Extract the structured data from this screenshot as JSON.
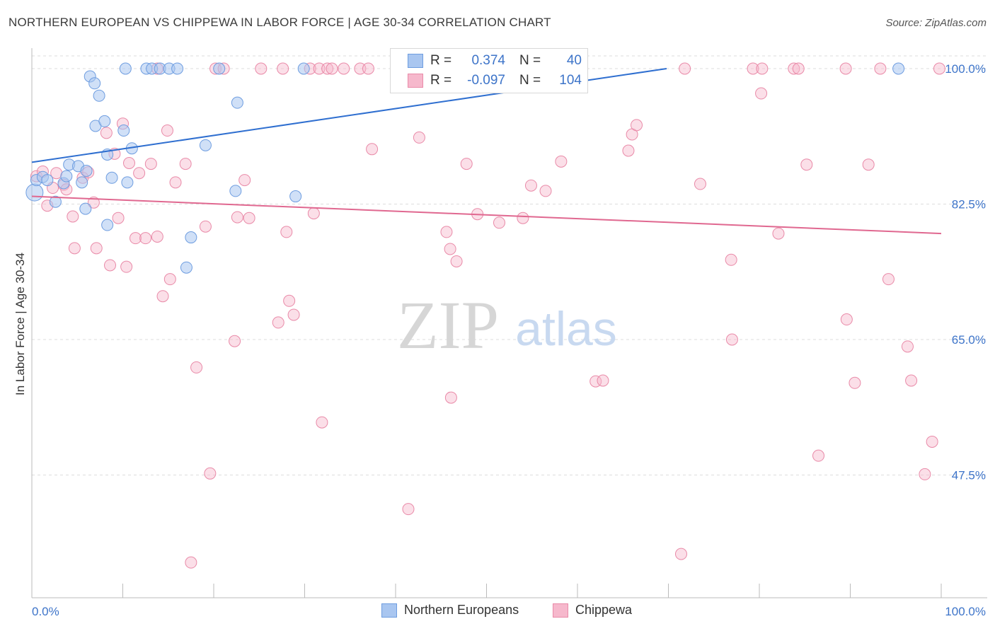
{
  "title": "NORTHERN EUROPEAN VS CHIPPEWA IN LABOR FORCE | AGE 30-34 CORRELATION CHART",
  "source": "Source: ZipAtlas.com",
  "watermark": {
    "zip": "ZIP",
    "atlas": "atlas"
  },
  "legend": {
    "row1": {
      "r_label": "R =",
      "r_value": "0.374",
      "n_label": "N =",
      "n_value": "40"
    },
    "row2": {
      "r_label": "R =",
      "r_value": "-0.097",
      "n_label": "N =",
      "n_value": "104"
    }
  },
  "bottom_legend": {
    "series1": "Northern Europeans",
    "series2": "Chippewa"
  },
  "colors": {
    "blue_fill": "#a9c6f0",
    "blue_stroke": "#6e9de0",
    "blue_line": "#2f6fd0",
    "pink_fill": "#f6b8cc",
    "pink_stroke": "#e98aa8",
    "pink_line": "#e06890",
    "axis_text": "#3d74c9",
    "grid": "#dddddd"
  },
  "chart_data": {
    "type": "scatter",
    "title": "NORTHERN EUROPEAN VS CHIPPEWA IN LABOR FORCE | AGE 30-34 CORRELATION CHART",
    "xlabel": "",
    "ylabel": "In Labor Force | Age 30-34",
    "xlim": [
      0,
      100
    ],
    "ylim": [
      30,
      101
    ],
    "x_tick_labels": [
      "0.0%",
      "100.0%"
    ],
    "y_ticks": [
      47.5,
      65.0,
      82.5,
      100.0
    ],
    "y_tick_labels": [
      "47.5%",
      "65.0%",
      "82.5%",
      "100.0%"
    ],
    "series": [
      {
        "name": "Northern Europeans",
        "R": 0.374,
        "N": 40,
        "trend": {
          "x": [
            0,
            69.8
          ],
          "y": [
            87.9,
            100.0
          ]
        },
        "points": [
          [
            0.3,
            84.0
          ],
          [
            0.5,
            85.6
          ],
          [
            1.2,
            86.0
          ],
          [
            1.7,
            85.6
          ],
          [
            2.6,
            82.8
          ],
          [
            3.5,
            85.2
          ],
          [
            3.8,
            86.1
          ],
          [
            4.1,
            87.6
          ],
          [
            5.1,
            87.4
          ],
          [
            5.5,
            85.3
          ],
          [
            6.0,
            86.8
          ],
          [
            5.9,
            81.9
          ],
          [
            6.4,
            99.0
          ],
          [
            6.9,
            98.1
          ],
          [
            7.4,
            96.5
          ],
          [
            7.0,
            92.6
          ],
          [
            8.0,
            93.2
          ],
          [
            8.3,
            88.9
          ],
          [
            8.8,
            85.9
          ],
          [
            8.3,
            79.8
          ],
          [
            10.1,
            92.0
          ],
          [
            10.5,
            85.3
          ],
          [
            11.0,
            89.7
          ],
          [
            10.3,
            100.0
          ],
          [
            12.6,
            100.0
          ],
          [
            13.2,
            100.0
          ],
          [
            14.1,
            100.0
          ],
          [
            15.1,
            100.0
          ],
          [
            16.0,
            100.0
          ],
          [
            17.0,
            74.3
          ],
          [
            17.5,
            78.2
          ],
          [
            19.1,
            90.1
          ],
          [
            20.6,
            100.0
          ],
          [
            22.4,
            84.2
          ],
          [
            22.6,
            95.6
          ],
          [
            29.0,
            83.5
          ],
          [
            29.9,
            100.0
          ],
          [
            40.3,
            100.0
          ],
          [
            58.2,
            100.0
          ],
          [
            95.3,
            100.0
          ]
        ]
      },
      {
        "name": "Chippewa",
        "R": -0.097,
        "N": 104,
        "trend": {
          "x": [
            0,
            100
          ],
          "y": [
            83.5,
            78.7
          ]
        },
        "points": [
          [
            0.5,
            86.1
          ],
          [
            1.2,
            86.7
          ],
          [
            1.7,
            82.3
          ],
          [
            2.3,
            84.6
          ],
          [
            2.7,
            86.5
          ],
          [
            3.5,
            85.0
          ],
          [
            3.8,
            84.4
          ],
          [
            4.5,
            80.9
          ],
          [
            4.7,
            76.8
          ],
          [
            5.6,
            85.9
          ],
          [
            6.2,
            86.6
          ],
          [
            6.8,
            82.7
          ],
          [
            7.1,
            76.8
          ],
          [
            8.2,
            91.7
          ],
          [
            8.6,
            74.6
          ],
          [
            9.1,
            89.0
          ],
          [
            9.5,
            80.7
          ],
          [
            10.0,
            92.9
          ],
          [
            10.4,
            74.4
          ],
          [
            10.7,
            87.8
          ],
          [
            11.4,
            78.1
          ],
          [
            11.8,
            86.5
          ],
          [
            12.5,
            78.1
          ],
          [
            13.1,
            87.7
          ],
          [
            13.8,
            78.3
          ],
          [
            14.4,
            70.6
          ],
          [
            14.9,
            92.0
          ],
          [
            15.2,
            72.8
          ],
          [
            15.8,
            85.3
          ],
          [
            16.9,
            87.7
          ],
          [
            17.5,
            36.2
          ],
          [
            18.1,
            61.4
          ],
          [
            19.1,
            79.6
          ],
          [
            19.6,
            47.7
          ],
          [
            20.2,
            100.0
          ],
          [
            21.1,
            100.0
          ],
          [
            22.3,
            64.8
          ],
          [
            22.6,
            80.8
          ],
          [
            23.4,
            85.6
          ],
          [
            23.9,
            80.7
          ],
          [
            25.2,
            100.0
          ],
          [
            27.6,
            100.0
          ],
          [
            27.1,
            67.2
          ],
          [
            28.0,
            78.9
          ],
          [
            28.3,
            70.0
          ],
          [
            28.8,
            68.2
          ],
          [
            30.6,
            100.0
          ],
          [
            31.0,
            81.3
          ],
          [
            31.6,
            100.0
          ],
          [
            31.9,
            54.3
          ],
          [
            32.5,
            100.0
          ],
          [
            33.0,
            100.0
          ],
          [
            34.3,
            100.0
          ],
          [
            36.1,
            100.0
          ],
          [
            37.4,
            89.6
          ],
          [
            41.4,
            43.1
          ],
          [
            42.6,
            91.1
          ],
          [
            45.6,
            78.9
          ],
          [
            46.1,
            57.5
          ],
          [
            46.0,
            76.7
          ],
          [
            46.7,
            75.1
          ],
          [
            47.8,
            87.7
          ],
          [
            49.0,
            81.2
          ],
          [
            51.4,
            80.1
          ],
          [
            54.0,
            80.7
          ],
          [
            54.9,
            84.9
          ],
          [
            56.5,
            84.2
          ],
          [
            58.2,
            88.0
          ],
          [
            62.0,
            59.6
          ],
          [
            62.8,
            59.7
          ],
          [
            65.6,
            89.4
          ],
          [
            66.0,
            91.5
          ],
          [
            66.5,
            92.7
          ],
          [
            71.4,
            37.3
          ],
          [
            71.8,
            100.0
          ],
          [
            73.5,
            85.1
          ],
          [
            76.9,
            75.3
          ],
          [
            77.0,
            65.0
          ],
          [
            79.3,
            100.0
          ],
          [
            80.3,
            100.0
          ],
          [
            80.2,
            96.8
          ],
          [
            82.1,
            78.7
          ],
          [
            83.8,
            100.0
          ],
          [
            84.3,
            100.0
          ],
          [
            85.2,
            87.6
          ],
          [
            86.5,
            50.0
          ],
          [
            89.6,
            67.6
          ],
          [
            90.5,
            59.4
          ],
          [
            89.5,
            100.0
          ],
          [
            92.0,
            87.6
          ],
          [
            93.3,
            100.0
          ],
          [
            94.2,
            72.8
          ],
          [
            96.3,
            64.1
          ],
          [
            96.7,
            59.7
          ],
          [
            98.2,
            47.6
          ],
          [
            99.0,
            51.8
          ],
          [
            99.8,
            100.0
          ],
          [
            40.6,
            100.0
          ],
          [
            44.0,
            100.0
          ],
          [
            48.0,
            100.0
          ],
          [
            59.5,
            100.0
          ],
          [
            13.8,
            100.0
          ],
          [
            37.0,
            100.0
          ],
          [
            46.0,
            100.0
          ]
        ]
      }
    ]
  }
}
